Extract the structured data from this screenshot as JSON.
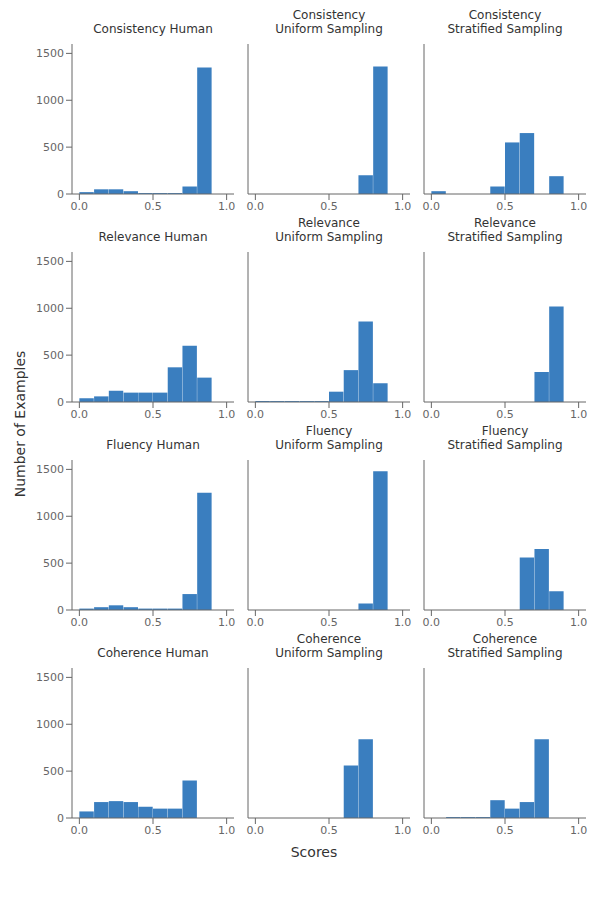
{
  "xlabel": "Scores",
  "ylabel": "Number of Examples",
  "chart_data": [
    {
      "type": "histogram",
      "title": "Consistency Human",
      "bins": [
        0.0,
        0.1,
        0.2,
        0.3,
        0.4,
        0.5,
        0.6,
        0.7,
        0.8,
        0.9,
        1.0
      ],
      "values": [
        20,
        50,
        50,
        30,
        10,
        10,
        10,
        80,
        1350,
        0
      ],
      "color": "#3a7ebf",
      "xlim": [
        -0.05,
        1.05
      ],
      "xticks": [
        {
          "value": 0.0,
          "label": "0.0"
        },
        0.5,
        {
          "value": 1.0,
          "label": "1.0"
        }
      ],
      "ylim": [
        0,
        1600
      ],
      "yticks": [
        0,
        500,
        1000,
        1500
      ],
      "grid": false
    },
    {
      "type": "histogram",
      "title": "Consistency\nUniform Sampling",
      "bins": [
        0.0,
        0.1,
        0.2,
        0.3,
        0.4,
        0.5,
        0.6,
        0.7,
        0.8,
        0.9,
        1.0
      ],
      "values": [
        0,
        0,
        0,
        0,
        0,
        0,
        0,
        200,
        1360,
        0
      ],
      "color": "#3a7ebf",
      "xlim": [
        -0.05,
        1.05
      ],
      "xticks": [
        {
          "value": 0.0,
          "label": "0.0"
        },
        0.5,
        {
          "value": 1.0,
          "label": "1.0"
        }
      ],
      "ylim": [
        0,
        1600
      ],
      "yticks": [
        0,
        500,
        1000,
        1500
      ],
      "grid": false,
      "tick_labels": "x"
    },
    {
      "type": "histogram",
      "title": "Consistency\nStratified Sampling",
      "bins": [
        0.0,
        0.1,
        0.2,
        0.3,
        0.4,
        0.5,
        0.6,
        0.7,
        0.8,
        0.9,
        1.0
      ],
      "values": [
        30,
        0,
        0,
        0,
        80,
        550,
        650,
        0,
        190,
        0
      ],
      "color": "#3a7ebf",
      "xlim": [
        -0.05,
        1.05
      ],
      "xticks": [
        {
          "value": 0.0,
          "label": "0.0"
        },
        0.5,
        {
          "value": 1.0,
          "label": "1.0"
        }
      ],
      "ylim": [
        0,
        1600
      ],
      "yticks": [
        0,
        500,
        1000,
        1500
      ],
      "grid": false,
      "tick_labels": "x"
    },
    {
      "type": "histogram",
      "title": "Relevance Human",
      "bins": [
        0.0,
        0.1,
        0.2,
        0.3,
        0.4,
        0.5,
        0.6,
        0.7,
        0.8,
        0.9,
        1.0
      ],
      "values": [
        40,
        60,
        120,
        100,
        100,
        100,
        370,
        600,
        260,
        0
      ],
      "color": "#3a7ebf",
      "xlim": [
        -0.05,
        1.05
      ],
      "xticks": [
        {
          "value": 0.0,
          "label": "0.0"
        },
        0.5,
        {
          "value": 1.0,
          "label": "1.0"
        }
      ],
      "ylim": [
        0,
        1600
      ],
      "yticks": [
        0,
        500,
        1000,
        1500
      ],
      "grid": false
    },
    {
      "type": "histogram",
      "title": "Relevance\nUniform Sampling",
      "bins": [
        0.0,
        0.1,
        0.2,
        0.3,
        0.4,
        0.5,
        0.6,
        0.7,
        0.8,
        0.9,
        1.0
      ],
      "values": [
        10,
        10,
        10,
        10,
        10,
        110,
        340,
        860,
        200,
        0
      ],
      "color": "#3a7ebf",
      "xlim": [
        -0.05,
        1.05
      ],
      "xticks": [
        {
          "value": 0.0,
          "label": "0.0"
        },
        0.5,
        {
          "value": 1.0,
          "label": "1.0"
        }
      ],
      "ylim": [
        0,
        1600
      ],
      "yticks": [
        0,
        500,
        1000,
        1500
      ],
      "grid": false,
      "tick_labels": "x"
    },
    {
      "type": "histogram",
      "title": "Relevance\nStratified Sampling",
      "bins": [
        0.0,
        0.1,
        0.2,
        0.3,
        0.4,
        0.5,
        0.6,
        0.7,
        0.8,
        0.9,
        1.0
      ],
      "values": [
        0,
        0,
        0,
        0,
        0,
        0,
        0,
        320,
        1020,
        0
      ],
      "color": "#3a7ebf",
      "xlim": [
        -0.05,
        1.05
      ],
      "xticks": [
        {
          "value": 0.0,
          "label": "0.0"
        },
        0.5,
        {
          "value": 1.0,
          "label": "1.0"
        }
      ],
      "ylim": [
        0,
        1600
      ],
      "yticks": [
        0,
        500,
        1000,
        1500
      ],
      "grid": false,
      "tick_labels": "x"
    },
    {
      "type": "histogram",
      "title": "Fluency Human",
      "bins": [
        0.0,
        0.1,
        0.2,
        0.3,
        0.4,
        0.5,
        0.6,
        0.7,
        0.8,
        0.9,
        1.0
      ],
      "values": [
        15,
        30,
        50,
        30,
        15,
        15,
        15,
        170,
        1250,
        0
      ],
      "color": "#3a7ebf",
      "xlim": [
        -0.05,
        1.05
      ],
      "xticks": [
        {
          "value": 0.0,
          "label": "0.0"
        },
        0.5,
        {
          "value": 1.0,
          "label": "1.0"
        }
      ],
      "ylim": [
        0,
        1600
      ],
      "yticks": [
        0,
        500,
        1000,
        1500
      ],
      "grid": false
    },
    {
      "type": "histogram",
      "title": "Fluency\nUniform Sampling",
      "bins": [
        0.0,
        0.1,
        0.2,
        0.3,
        0.4,
        0.5,
        0.6,
        0.7,
        0.8,
        0.9,
        1.0
      ],
      "values": [
        0,
        0,
        0,
        0,
        0,
        0,
        0,
        70,
        1480,
        0
      ],
      "color": "#3a7ebf",
      "xlim": [
        -0.05,
        1.05
      ],
      "xticks": [
        {
          "value": 0.0,
          "label": "0.0"
        },
        0.5,
        {
          "value": 1.0,
          "label": "1.0"
        }
      ],
      "ylim": [
        0,
        1600
      ],
      "yticks": [
        0,
        500,
        1000,
        1500
      ],
      "grid": false,
      "tick_labels": "x"
    },
    {
      "type": "histogram",
      "title": "Fluency\nStratified Sampling",
      "bins": [
        0.0,
        0.1,
        0.2,
        0.3,
        0.4,
        0.5,
        0.6,
        0.7,
        0.8,
        0.9,
        1.0
      ],
      "values": [
        0,
        0,
        0,
        0,
        0,
        0,
        560,
        650,
        200,
        0
      ],
      "color": "#3a7ebf",
      "xlim": [
        -0.05,
        1.05
      ],
      "xticks": [
        {
          "value": 0.0,
          "label": "0.0"
        },
        0.5,
        {
          "value": 1.0,
          "label": "1.0"
        }
      ],
      "ylim": [
        0,
        1600
      ],
      "yticks": [
        0,
        500,
        1000,
        1500
      ],
      "grid": false,
      "tick_labels": "x"
    },
    {
      "type": "histogram",
      "title": "Coherence Human",
      "bins": [
        0.0,
        0.1,
        0.2,
        0.3,
        0.4,
        0.5,
        0.6,
        0.7,
        0.8,
        0.9,
        1.0
      ],
      "values": [
        70,
        170,
        180,
        170,
        120,
        100,
        100,
        400,
        0,
        0
      ],
      "color": "#3a7ebf",
      "xlim": [
        -0.05,
        1.05
      ],
      "xticks": [
        {
          "value": 0.0,
          "label": "0.0"
        },
        0.5,
        {
          "value": 1.0,
          "label": "1.0"
        }
      ],
      "ylim": [
        0,
        1600
      ],
      "yticks": [
        0,
        500,
        1000,
        1500
      ],
      "grid": false
    },
    {
      "type": "histogram",
      "title": "Coherence\nUniform Sampling",
      "bins": [
        0.0,
        0.1,
        0.2,
        0.3,
        0.4,
        0.5,
        0.6,
        0.7,
        0.8,
        0.9,
        1.0
      ],
      "values": [
        0,
        0,
        0,
        0,
        0,
        0,
        560,
        840,
        0,
        0
      ],
      "color": "#3a7ebf",
      "xlim": [
        -0.05,
        1.05
      ],
      "xticks": [
        {
          "value": 0.0,
          "label": "0.0"
        },
        0.5,
        {
          "value": 1.0,
          "label": "1.0"
        }
      ],
      "ylim": [
        0,
        1600
      ],
      "yticks": [
        0,
        500,
        1000,
        1500
      ],
      "grid": false,
      "tick_labels": "x"
    },
    {
      "type": "histogram",
      "title": "Coherence\nStratified Sampling",
      "bins": [
        0.0,
        0.1,
        0.2,
        0.3,
        0.4,
        0.5,
        0.6,
        0.7,
        0.8,
        0.9,
        1.0
      ],
      "values": [
        0,
        10,
        10,
        10,
        190,
        100,
        170,
        840,
        0,
        0
      ],
      "color": "#3a7ebf",
      "xlim": [
        -0.05,
        1.05
      ],
      "xticks": [
        {
          "value": 0.0,
          "label": "0.0"
        },
        0.5,
        {
          "value": 1.0,
          "label": "1.0"
        }
      ],
      "ylim": [
        0,
        1600
      ],
      "yticks": [
        0,
        500,
        1000,
        1500
      ],
      "grid": false,
      "tick_labels": "x"
    }
  ]
}
